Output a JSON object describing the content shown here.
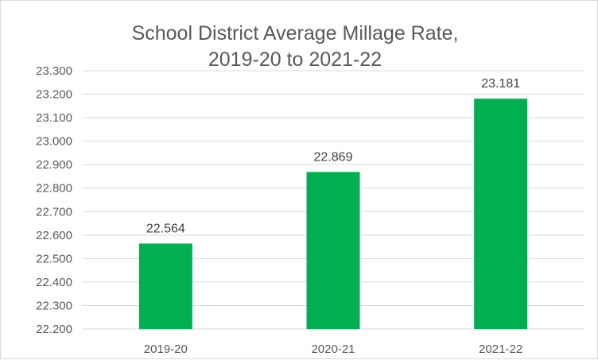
{
  "chart_data": {
    "type": "bar",
    "title": [
      "School District Average Millage Rate,",
      "2019-20 to 2021-22"
    ],
    "categories": [
      "2019-20",
      "2020-21",
      "2021-22"
    ],
    "values": [
      22.564,
      22.869,
      23.181
    ],
    "data_labels": [
      "22.564",
      "22.869",
      "23.181"
    ],
    "ylim": [
      22.2,
      23.3
    ],
    "yticks": [
      "22.200",
      "22.300",
      "22.400",
      "22.500",
      "22.600",
      "22.700",
      "22.800",
      "22.900",
      "23.000",
      "23.100",
      "23.200",
      "23.300"
    ],
    "xlabel": "",
    "ylabel": "",
    "grid": true,
    "legend": "none",
    "bar_color": "#00b050"
  }
}
